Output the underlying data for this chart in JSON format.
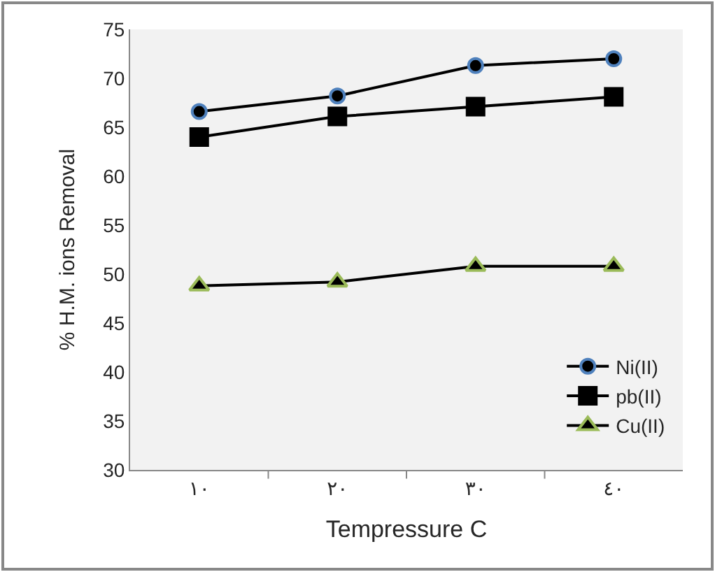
{
  "chart_data": {
    "type": "line",
    "xlabel": "Tempressure C",
    "ylabel": "% H.M. ions Removal",
    "categories": [
      "١٠",
      "٢٠",
      "٣٠",
      "٤٠"
    ],
    "series": [
      {
        "name": "Ni(II)",
        "color": "#4f81bd",
        "marker": "circle",
        "values": [
          66.6,
          68.2,
          71.3,
          72
        ]
      },
      {
        "name": "pb(II)",
        "color": "#000000",
        "marker": "square",
        "values": [
          64,
          66.1,
          67.1,
          68.1
        ]
      },
      {
        "name": "Cu(II)",
        "color": "#9bbb59",
        "marker": "triangle",
        "values": [
          48.8,
          49.2,
          50.8,
          50.8
        ]
      }
    ],
    "ylim": [
      30,
      75
    ],
    "yticks": [
      30,
      35,
      40,
      45,
      50,
      55,
      60,
      65,
      70,
      75
    ],
    "grid": false,
    "legend": "bottom right"
  }
}
